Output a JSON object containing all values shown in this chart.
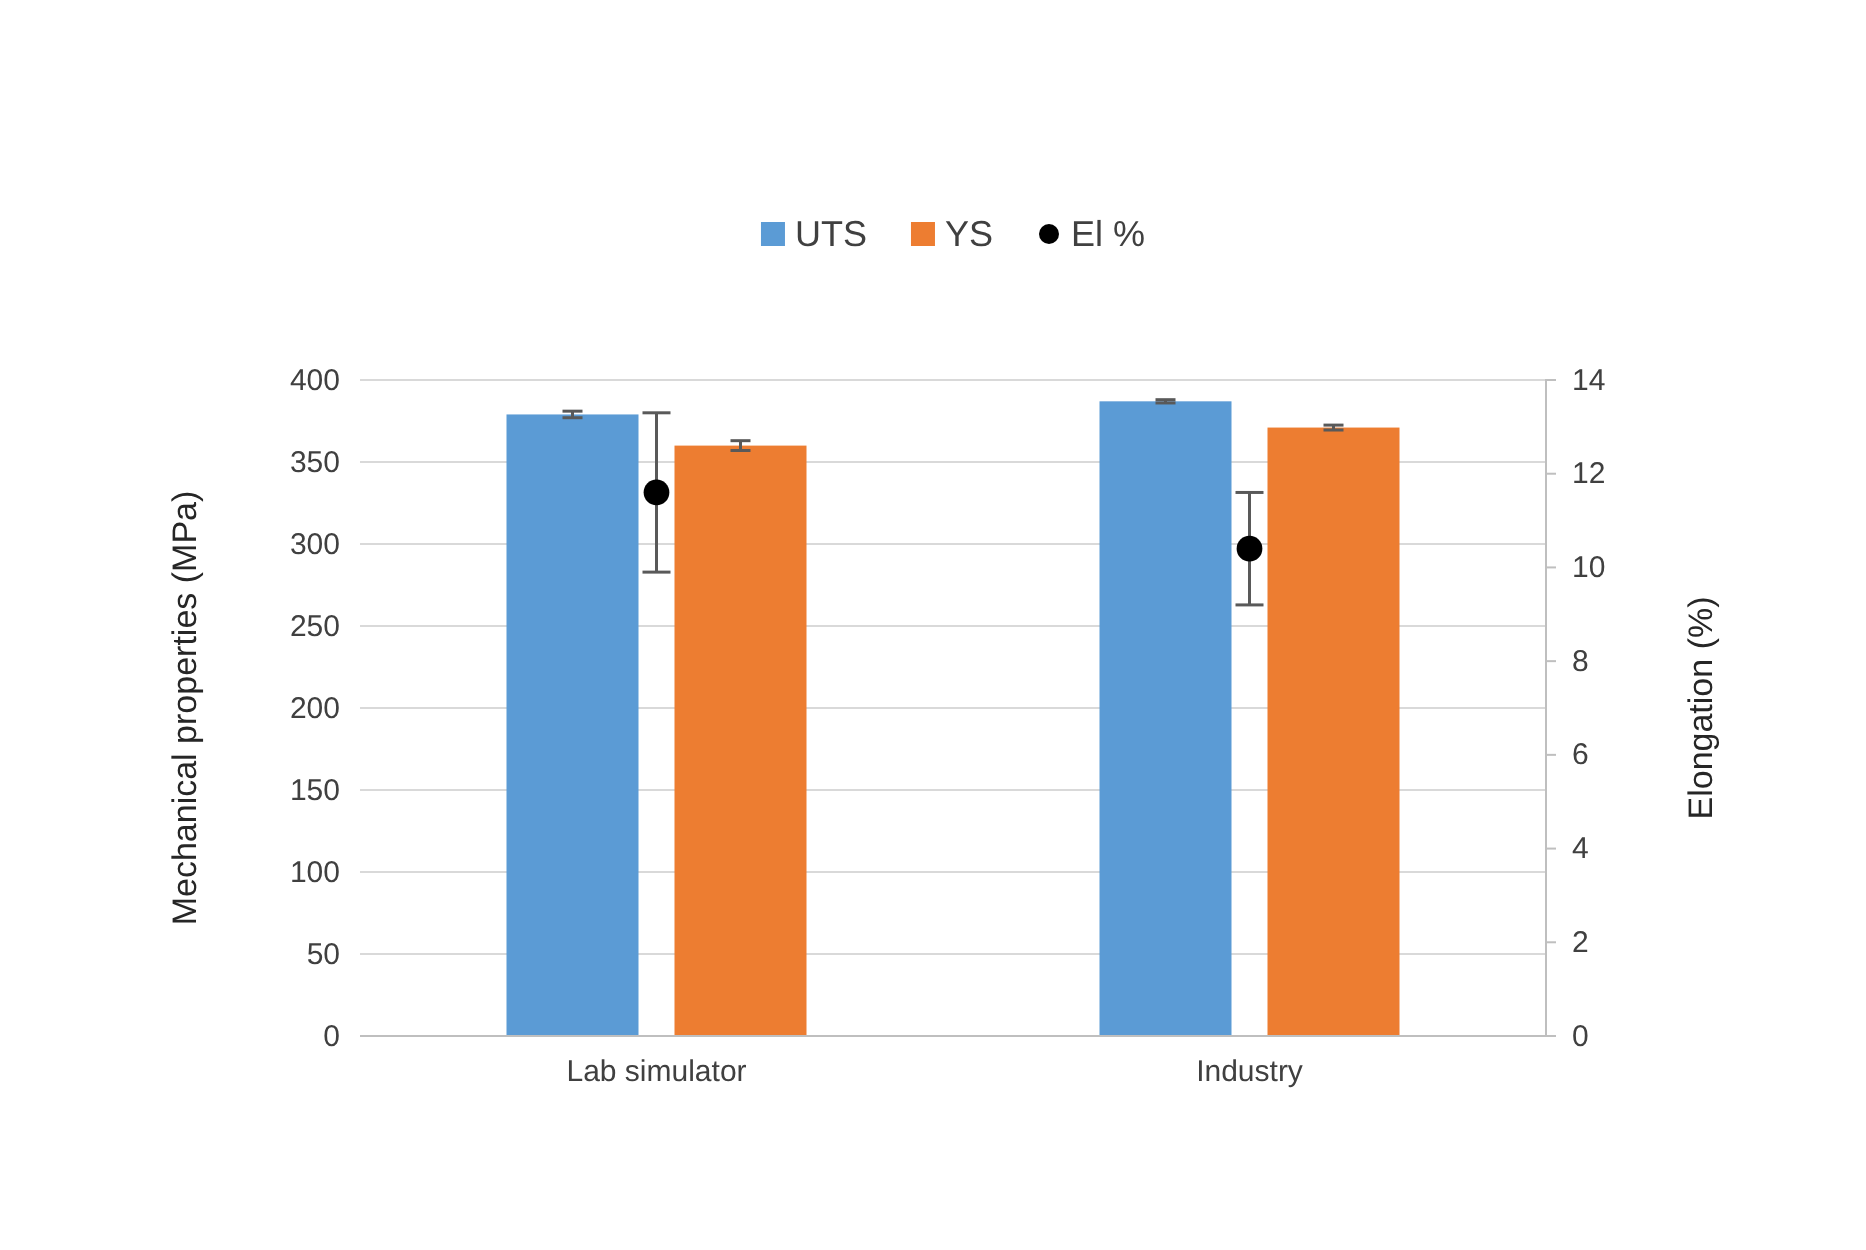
{
  "chart_data": {
    "type": "bar",
    "categories": [
      "Lab simulator",
      "Industry"
    ],
    "ylabel": "Mechanical properties (MPa)",
    "y2label": "Elongation (%)",
    "ylim": [
      0,
      400
    ],
    "yticks": [
      0,
      50,
      100,
      150,
      200,
      250,
      300,
      350,
      400
    ],
    "y2lim": [
      0,
      14
    ],
    "y2ticks": [
      0,
      2,
      4,
      6,
      8,
      10,
      12,
      14
    ],
    "grid": "y",
    "legend": "top",
    "series": [
      {
        "name": "UTS",
        "color": "#5b9bd5",
        "values": [
          379,
          387
        ],
        "errors": [
          2,
          1
        ]
      },
      {
        "name": "YS",
        "color": "#ed7d31",
        "values": [
          360,
          371
        ],
        "errors": [
          3,
          1.5
        ]
      },
      {
        "name": "El %",
        "type": "scatter",
        "axis": "y2",
        "marker": "circle",
        "color": "#000000",
        "x": [
          "Lab simulator",
          "Industry"
        ],
        "values": [
          11.6,
          10.4
        ],
        "errors": [
          1.7,
          1.2
        ]
      }
    ]
  }
}
